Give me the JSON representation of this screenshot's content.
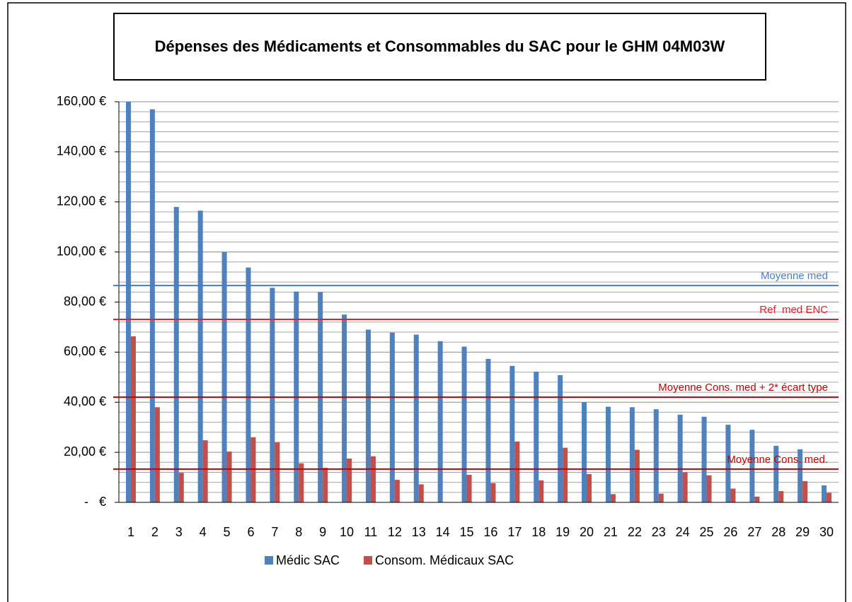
{
  "chart_data": {
    "type": "bar",
    "title": "Dépenses des Médicaments et Consommables du SAC pour le GHM 04M03W",
    "categories": [
      "1",
      "2",
      "3",
      "4",
      "5",
      "6",
      "7",
      "8",
      "9",
      "10",
      "11",
      "12",
      "13",
      "14",
      "15",
      "16",
      "17",
      "18",
      "19",
      "20",
      "21",
      "22",
      "23",
      "24",
      "25",
      "26",
      "27",
      "28",
      "29",
      "30"
    ],
    "series": [
      {
        "name": "Médic SAC",
        "color": "#4f81bd",
        "values": [
          160,
          157,
          118,
          116.5,
          100,
          93.8,
          85.7,
          84.2,
          84,
          75,
          69,
          67.8,
          67,
          64.4,
          62.2,
          57.3,
          54.5,
          52.2,
          50.8,
          40,
          38.2,
          38,
          37.2,
          35,
          34.2,
          31,
          29,
          22.6,
          21.2,
          6.8
        ]
      },
      {
        "name": "Consom. Médicaux SAC",
        "color": "#c0504d",
        "values": [
          66.3,
          38,
          11.8,
          24.8,
          20.3,
          26,
          24,
          15.6,
          13.8,
          17.5,
          18.4,
          9,
          7.2,
          0,
          11,
          7.7,
          24.3,
          8.8,
          21.8,
          11.3,
          3.3,
          21,
          3.5,
          12,
          10.8,
          5.5,
          2.3,
          4.5,
          8.5,
          3.8
        ]
      }
    ],
    "reference_lines": [
      {
        "label": "Moyenne med",
        "value": 86.6,
        "color": "#4a7ebb"
      },
      {
        "label": "Ref  med ENC",
        "value": 73.1,
        "color": "#e8202a"
      },
      {
        "label": "Moyenne Cons. med + 2* écart type",
        "value": 42,
        "color": "#c00000"
      },
      {
        "label": "Moyenne Cons. med.",
        "value": 13.3,
        "color": "#c00000"
      }
    ],
    "ylim": [
      0,
      160
    ],
    "yticks": [
      {
        "value": 0,
        "label": "-   €"
      },
      {
        "value": 20,
        "label": "20,00 €"
      },
      {
        "value": 40,
        "label": "40,00 €"
      },
      {
        "value": 60,
        "label": "60,00 €"
      },
      {
        "value": 80,
        "label": "80,00 €"
      },
      {
        "value": 100,
        "label": "100,00 €"
      },
      {
        "value": 120,
        "label": "120,00 €"
      },
      {
        "value": 140,
        "label": "140,00 €"
      },
      {
        "value": 160,
        "label": "160,00 €"
      }
    ],
    "minor_yticks": [
      4,
      8,
      12,
      16,
      24,
      28,
      32,
      36,
      44,
      48,
      52,
      56,
      64,
      68,
      72,
      76,
      84,
      88,
      92,
      96,
      104,
      108,
      112,
      116,
      124,
      128,
      132,
      136,
      144,
      148,
      152,
      156
    ],
    "grid": true,
    "legend": "bottom"
  }
}
